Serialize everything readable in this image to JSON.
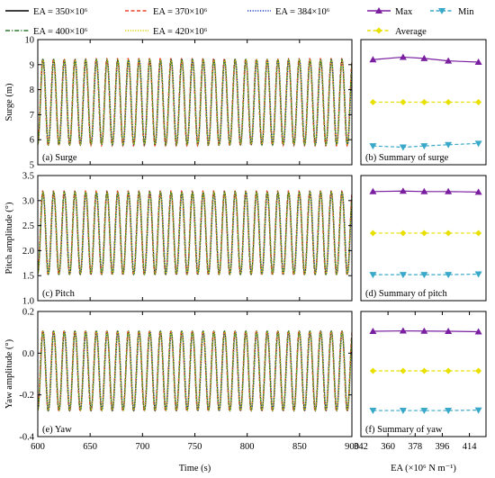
{
  "legend": {
    "entries": [
      {
        "label": "EA = 350×10⁶",
        "color": "#000000",
        "dash": "solid",
        "marker": "none"
      },
      {
        "label": "EA = 370×10⁶",
        "color": "#e8402a",
        "dash": "dash",
        "marker": "none"
      },
      {
        "label": "EA = 384×10⁶",
        "color": "#1f3fbf",
        "dash": "dot",
        "marker": "none"
      },
      {
        "label": "Max",
        "color": "#7a1fa0",
        "dash": "solid",
        "marker": "triangle-up"
      },
      {
        "label": "Min",
        "color": "#3aa8c8",
        "dash": "dash",
        "marker": "triangle-down"
      },
      {
        "label": "EA = 400×10⁶",
        "color": "#2f7a2f",
        "dash": "dashdot",
        "marker": "none"
      },
      {
        "label": "EA = 420×10⁶",
        "color": "#e0d000",
        "dash": "dot",
        "marker": "none"
      },
      {
        "label": "Average",
        "color": "#e8e000",
        "dash": "dash",
        "marker": "diamond"
      }
    ]
  },
  "chart_data": [
    {
      "type": "line",
      "panel_label": "(a) Surge",
      "ylabel": "Surge (m)",
      "xlabel": "",
      "xlim": [
        600,
        900
      ],
      "ylim": [
        5,
        10
      ],
      "yticks": [
        5,
        6,
        7,
        8,
        9,
        10
      ],
      "xticks": [
        600,
        650,
        700,
        750,
        800,
        850,
        900
      ],
      "show_xtick_labels": false,
      "series_shape": {
        "center": 7.5,
        "amplitude": 1.7,
        "period_s": 10.2,
        "phase_s": 2.5
      },
      "series": [
        {
          "legend_ref": 0
        },
        {
          "legend_ref": 1
        },
        {
          "legend_ref": 2
        },
        {
          "legend_ref": 5
        },
        {
          "legend_ref": 6
        }
      ]
    },
    {
      "type": "line",
      "panel_label": "(b) Summary of surge",
      "xlim": [
        342,
        425
      ],
      "ylim": [
        5,
        10
      ],
      "show_xtick_labels": false,
      "x": [
        350,
        370,
        384,
        400,
        420
      ],
      "series": [
        {
          "legend_ref": 3,
          "values": [
            9.2,
            9.3,
            9.25,
            9.15,
            9.1
          ]
        },
        {
          "legend_ref": 7,
          "values": [
            7.5,
            7.5,
            7.5,
            7.5,
            7.5
          ]
        },
        {
          "legend_ref": 4,
          "values": [
            5.75,
            5.7,
            5.75,
            5.8,
            5.85
          ]
        }
      ]
    },
    {
      "type": "line",
      "panel_label": "(c) Pitch",
      "ylabel": "Pitch amplitude (°)",
      "xlabel": "",
      "xlim": [
        600,
        900
      ],
      "ylim": [
        1.0,
        3.5
      ],
      "yticks": [
        1.0,
        1.5,
        2.0,
        2.5,
        3.0,
        3.5
      ],
      "xticks": [
        600,
        650,
        700,
        750,
        800,
        850,
        900
      ],
      "show_xtick_labels": false,
      "series_shape": {
        "center": 2.35,
        "amplitude": 0.82,
        "period_s": 10.2,
        "phase_s": 2.5
      },
      "series": [
        {
          "legend_ref": 0
        },
        {
          "legend_ref": 1
        },
        {
          "legend_ref": 2
        },
        {
          "legend_ref": 5
        },
        {
          "legend_ref": 6
        }
      ]
    },
    {
      "type": "line",
      "panel_label": "(d) Summary of pitch",
      "xlim": [
        342,
        425
      ],
      "ylim": [
        1.0,
        3.5
      ],
      "show_xtick_labels": false,
      "x": [
        350,
        370,
        384,
        400,
        420
      ],
      "series": [
        {
          "legend_ref": 3,
          "values": [
            3.18,
            3.19,
            3.18,
            3.18,
            3.17
          ]
        },
        {
          "legend_ref": 7,
          "values": [
            2.35,
            2.35,
            2.35,
            2.35,
            2.35
          ]
        },
        {
          "legend_ref": 4,
          "values": [
            1.52,
            1.52,
            1.52,
            1.52,
            1.53
          ]
        }
      ]
    },
    {
      "type": "line",
      "panel_label": "(e) Yaw",
      "ylabel": "Yaw amplitude (°)",
      "xlabel": "Time (s)",
      "xlim": [
        600,
        900
      ],
      "ylim": [
        -0.4,
        0.2
      ],
      "yticks": [
        -0.4,
        -0.2,
        0.0,
        0.2
      ],
      "ytick_labels": [
        "-0.4",
        "-0.2",
        "0.0",
        "0.2"
      ],
      "xticks": [
        600,
        650,
        700,
        750,
        800,
        850,
        900
      ],
      "show_xtick_labels": true,
      "series_shape": {
        "center": -0.085,
        "amplitude": 0.19,
        "period_s": 10.2,
        "phase_s": 2.5
      },
      "series": [
        {
          "legend_ref": 0
        },
        {
          "legend_ref": 1
        },
        {
          "legend_ref": 2
        },
        {
          "legend_ref": 5
        },
        {
          "legend_ref": 6
        }
      ]
    },
    {
      "type": "line",
      "panel_label": "(f) Summary of yaw",
      "xlabel": "EA (×10⁶ N m⁻¹)",
      "xlim": [
        342,
        425
      ],
      "ylim": [
        -0.4,
        0.2
      ],
      "xticks": [
        342,
        360,
        378,
        396,
        414
      ],
      "show_xtick_labels": true,
      "x": [
        350,
        370,
        384,
        400,
        420
      ],
      "series": [
        {
          "legend_ref": 3,
          "values": [
            0.105,
            0.107,
            0.106,
            0.105,
            0.103
          ]
        },
        {
          "legend_ref": 7,
          "values": [
            -0.085,
            -0.085,
            -0.085,
            -0.085,
            -0.085
          ]
        },
        {
          "legend_ref": 4,
          "values": [
            -0.275,
            -0.275,
            -0.275,
            -0.275,
            -0.273
          ]
        }
      ]
    }
  ]
}
